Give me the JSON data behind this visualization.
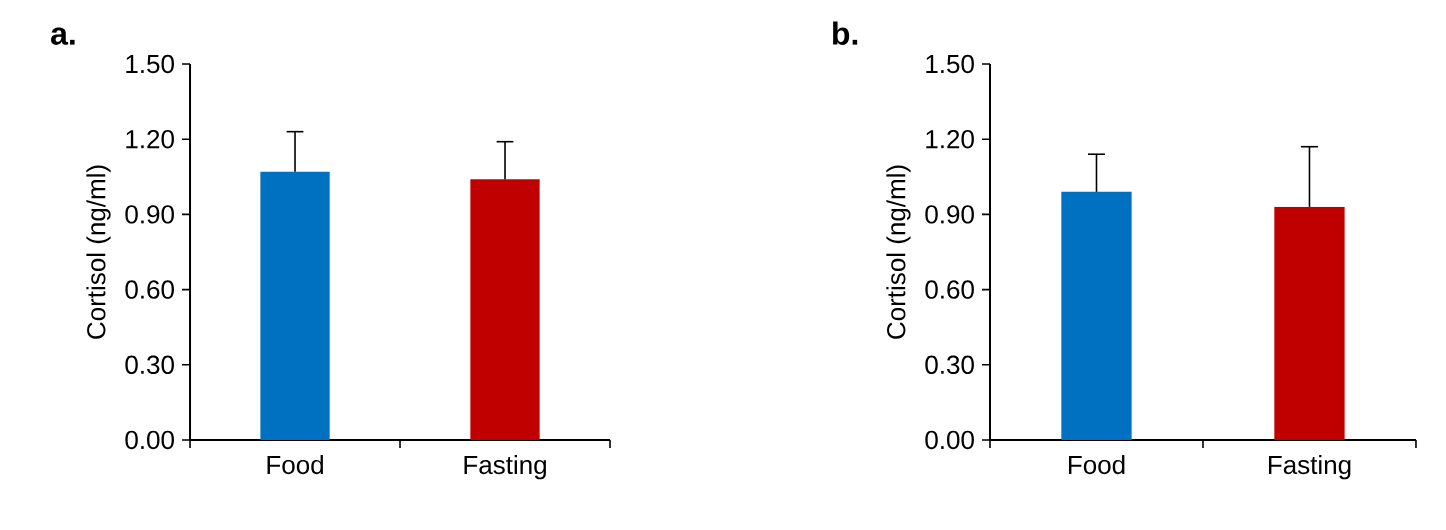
{
  "chart_data": [
    {
      "type": "bar",
      "title": "a.",
      "ylabel": "Cortisol (ng/ml)",
      "categories": [
        "Food",
        "Fasting"
      ],
      "values": [
        1.07,
        1.04
      ],
      "colors": [
        "#0070c0",
        "#c00000"
      ],
      "errors": [
        [
          1.07,
          1.23
        ],
        [
          1.04,
          1.19
        ]
      ],
      "ylim": [
        0,
        1.5
      ],
      "yticks": [
        {
          "value": 0,
          "label": "0.00"
        },
        {
          "value": 0.3,
          "label": "0.30"
        },
        {
          "value": 0.6,
          "label": "0.60"
        },
        {
          "value": 0.9,
          "label": "0.90"
        },
        {
          "value": 1.2,
          "label": "1.20"
        },
        {
          "value": 1.5,
          "label": "1.50"
        }
      ]
    },
    {
      "type": "bar",
      "title": "b.",
      "ylabel": "Cortisol (ng/ml)",
      "categories": [
        "Food",
        "Fasting"
      ],
      "values": [
        0.99,
        0.93
      ],
      "colors": [
        "#0070c0",
        "#c00000"
      ],
      "errors": [
        [
          0.99,
          1.14
        ],
        [
          0.93,
          1.17
        ]
      ],
      "ylim": [
        0,
        1.5
      ],
      "yticks": [
        {
          "value": 0,
          "label": "0.00"
        },
        {
          "value": 0.3,
          "label": "0.30"
        },
        {
          "value": 0.6,
          "label": "0.60"
        },
        {
          "value": 0.9,
          "label": "0.90"
        },
        {
          "value": 1.2,
          "label": "1.20"
        },
        {
          "value": 1.5,
          "label": "1.50"
        }
      ]
    }
  ]
}
